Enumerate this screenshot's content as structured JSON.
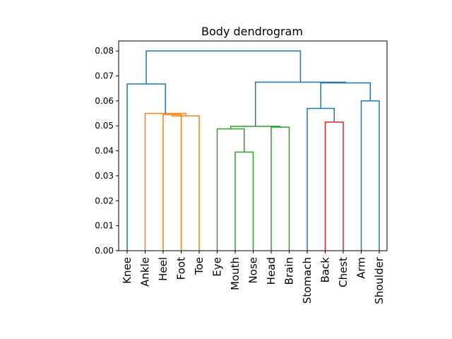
{
  "chart_data": {
    "type": "dendrogram",
    "title": "Body dendrogram",
    "xlabel": "",
    "ylabel": "",
    "ylim": [
      0,
      0.084
    ],
    "yticks": [
      0.0,
      0.01,
      0.02,
      0.03,
      0.04,
      0.05,
      0.06,
      0.07,
      0.08
    ],
    "ytick_labels": [
      "0.00",
      "0.01",
      "0.02",
      "0.03",
      "0.04",
      "0.05",
      "0.06",
      "0.07",
      "0.08"
    ],
    "leaves": [
      "Knee",
      "Ankle",
      "Heel",
      "Foot",
      "Toe",
      "Eye",
      "Mouth",
      "Nose",
      "Head",
      "Brain",
      "Stomach",
      "Back",
      "Chest",
      "Arm",
      "Shoulder"
    ],
    "colors": {
      "above_threshold": "#1f77b4",
      "orange": "#ff7f0e",
      "green": "#2ca02c",
      "red": "#d62728"
    },
    "merges": [
      {
        "id": "n_heel_foot",
        "left": "Heel",
        "right": "Foot",
        "height": 0.0545,
        "color": "orange"
      },
      {
        "id": "n_hf_toe",
        "left": "n_heel_foot",
        "right": "Toe",
        "height": 0.054,
        "color": "orange"
      },
      {
        "id": "n_ankle_grp",
        "left": "Ankle",
        "right": "n_hf_toe",
        "height": 0.055,
        "color": "orange"
      },
      {
        "id": "n_leg",
        "left": "Knee",
        "right": "n_ankle_grp",
        "height": 0.0668,
        "color": "above_threshold"
      },
      {
        "id": "n_mouth_nose",
        "left": "Mouth",
        "right": "Nose",
        "height": 0.0395,
        "color": "green"
      },
      {
        "id": "n_eye_grp",
        "left": "Eye",
        "right": "n_mouth_nose",
        "height": 0.0488,
        "color": "green"
      },
      {
        "id": "n_head_brain",
        "left": "Head",
        "right": "Brain",
        "height": 0.0495,
        "color": "green"
      },
      {
        "id": "n_face",
        "left": "n_eye_grp",
        "right": "n_head_brain",
        "height": 0.0498,
        "color": "green"
      },
      {
        "id": "n_back_chest",
        "left": "Back",
        "right": "Chest",
        "height": 0.0515,
        "color": "red"
      },
      {
        "id": "n_torso",
        "left": "Stomach",
        "right": "n_back_chest",
        "height": 0.057,
        "color": "above_threshold"
      },
      {
        "id": "n_arm_sh",
        "left": "Arm",
        "right": "Shoulder",
        "height": 0.06,
        "color": "above_threshold"
      },
      {
        "id": "n_upper",
        "left": "n_torso",
        "right": "n_arm_sh",
        "height": 0.0672,
        "color": "above_threshold"
      },
      {
        "id": "n_head_upper",
        "left": "n_face",
        "right": "n_upper",
        "height": 0.0675,
        "color": "above_threshold"
      },
      {
        "id": "n_root",
        "left": "n_leg",
        "right": "n_head_upper",
        "height": 0.08,
        "color": "above_threshold"
      }
    ]
  }
}
